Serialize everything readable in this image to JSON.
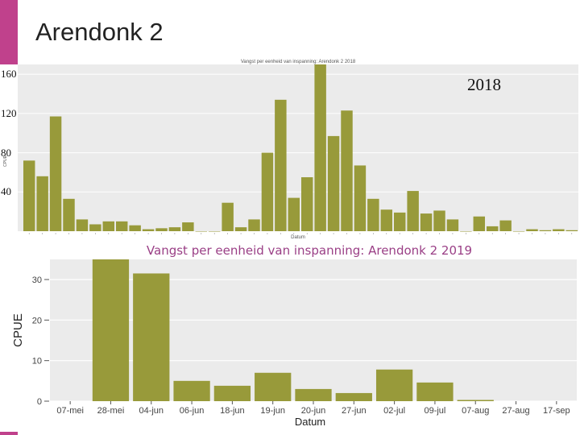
{
  "slide": {
    "title": "Arendonk 2",
    "accent_color": "#c0418c"
  },
  "chart_data": [
    {
      "type": "bar",
      "title": "Vangst per eenheid van inspanning: Arendonk 2 2018",
      "year_label": "2018",
      "xlabel": "Datum",
      "ylabel": "CPUE",
      "ylim": [
        0,
        170
      ],
      "yticks": [
        {
          "value": 40,
          "label": "40"
        },
        {
          "value": 80,
          "label": "80"
        },
        {
          "value": 120,
          "label": "120"
        },
        {
          "value": 160,
          "label": "160"
        }
      ],
      "bar_color": "#989a3a",
      "background": "#ebebeb",
      "values": [
        72,
        56,
        117,
        33,
        12,
        7,
        10,
        10,
        6,
        2,
        3,
        4,
        9,
        0,
        0,
        29,
        4,
        12,
        80,
        134,
        34,
        55,
        170,
        97,
        123,
        67,
        33,
        22,
        19,
        41,
        18,
        21,
        12,
        0,
        15,
        5,
        11,
        0,
        2,
        1,
        2,
        1
      ]
    },
    {
      "type": "bar",
      "title": "Vangst per eenheid van inspanning: Arendonk 2   2019",
      "xlabel": "Datum",
      "ylabel": "CPUE",
      "ylim": [
        0,
        34.8
      ],
      "yticks": [
        0,
        10,
        20,
        30
      ],
      "bar_color": "#989a3a",
      "background": "#ebebeb",
      "categories": [
        "07-mei",
        "28-mei",
        "04-jun",
        "06-jun",
        "18-jun",
        "19-jun",
        "20-jun",
        "27-jun",
        "02-jul",
        "09-jul",
        "07-aug",
        "27-aug",
        "17-sep"
      ],
      "values": [
        0,
        35,
        31.5,
        5,
        3.8,
        7,
        3,
        2,
        7.8,
        4.6,
        0.3,
        0,
        0
      ]
    }
  ]
}
